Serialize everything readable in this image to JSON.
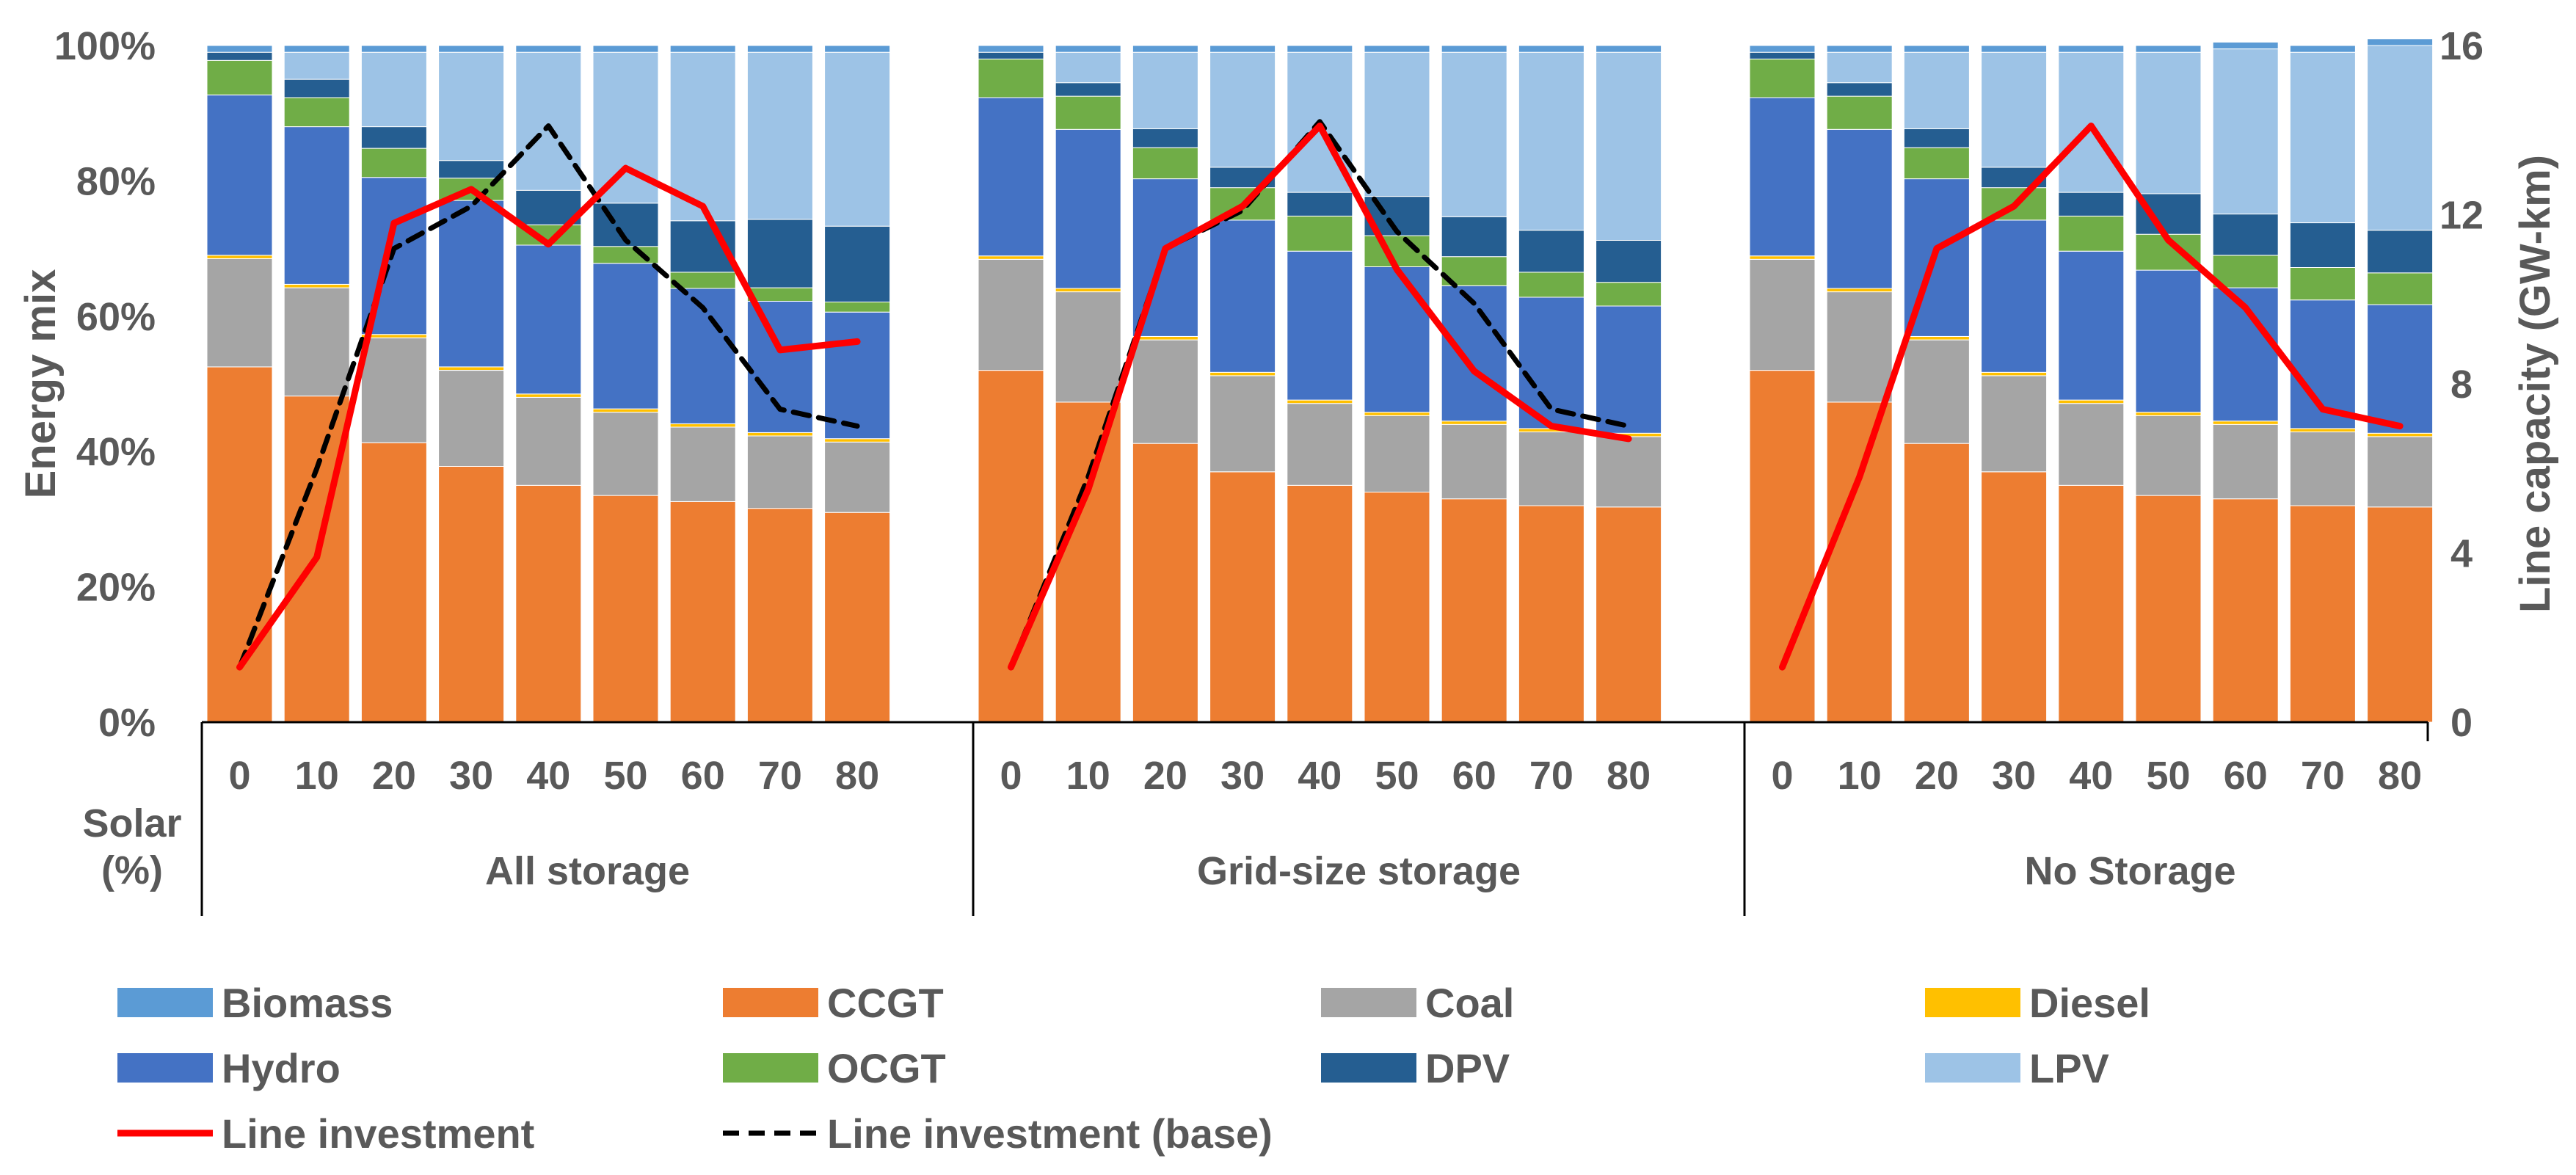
{
  "chart_data": {
    "type": "bar",
    "stacked": true,
    "percent_stacked": true,
    "y_left": {
      "label": "Energy mix",
      "range": [
        0,
        100
      ],
      "ticks": [
        "0%",
        "20%",
        "40%",
        "60%",
        "80%",
        "100%"
      ]
    },
    "y_right": {
      "label": "Line capacity (GW-km)",
      "range": [
        0,
        16
      ],
      "ticks": [
        "0",
        "4",
        "8",
        "12",
        "16"
      ]
    },
    "x_axis": {
      "label_lines": [
        "Solar",
        "(%)"
      ],
      "categories": [
        "0",
        "10",
        "20",
        "30",
        "40",
        "50",
        "60",
        "70",
        "80"
      ]
    },
    "stack_order": [
      "CCGT",
      "Coal",
      "Diesel",
      "Hydro",
      "OCGT",
      "DPV",
      "LPV",
      "Biomass"
    ],
    "colors": {
      "Biomass": "#5B9BD5",
      "CCGT": "#ED7D31",
      "Coal": "#A5A5A5",
      "Diesel": "#FFC000",
      "Hydro": "#4472C4",
      "OCGT": "#70AD47",
      "DPV": "#255E91",
      "LPV": "#9DC3E6",
      "Line investment": "#FF0000",
      "Line investment (base)": "#000000"
    },
    "groups": [
      {
        "name": "All storage",
        "series": {
          "CCGT": [
            52.5,
            48.2,
            41.3,
            37.8,
            35.0,
            33.5,
            32.6,
            31.6,
            31.0
          ],
          "Coal": [
            16.0,
            16.0,
            15.5,
            14.2,
            13.0,
            12.3,
            11.0,
            10.7,
            10.4
          ],
          "Diesel": [
            0.5,
            0.5,
            0.5,
            0.5,
            0.5,
            0.5,
            0.5,
            0.5,
            0.5
          ],
          "Hydro": [
            23.7,
            23.3,
            23.2,
            24.6,
            22.0,
            21.5,
            20.0,
            19.4,
            18.7
          ],
          "OCGT": [
            5.1,
            4.3,
            4.3,
            3.3,
            3.0,
            2.5,
            2.4,
            2.0,
            1.5
          ],
          "DPV": [
            1.2,
            2.7,
            3.2,
            2.6,
            5.1,
            6.4,
            7.6,
            10.1,
            11.2
          ],
          "LPV": [
            0.0,
            4.0,
            11.0,
            16.0,
            20.4,
            22.3,
            24.9,
            24.7,
            25.7
          ],
          "Biomass": [
            1.0,
            1.0,
            1.0,
            1.0,
            1.0,
            1.0,
            1.0,
            1.0,
            1.0
          ]
        },
        "lines": {
          "Line investment": [
            1.3,
            3.9,
            11.8,
            12.6,
            11.3,
            13.1,
            12.2,
            8.8,
            9.0
          ],
          "Line investment (base)": [
            1.3,
            6.0,
            11.2,
            12.2,
            14.1,
            11.4,
            9.8,
            7.4,
            7.0
          ]
        }
      },
      {
        "name": "Grid-size storage",
        "series": {
          "CCGT": [
            52.0,
            47.3,
            41.2,
            37.0,
            35.0,
            34.0,
            33.0,
            32.0,
            31.8
          ],
          "Coal": [
            16.4,
            16.3,
            15.3,
            14.2,
            12.1,
            11.3,
            11.0,
            10.9,
            10.4
          ],
          "Diesel": [
            0.5,
            0.5,
            0.5,
            0.5,
            0.5,
            0.5,
            0.5,
            0.5,
            0.5
          ],
          "Hydro": [
            23.4,
            23.5,
            23.3,
            22.5,
            22.0,
            21.5,
            20.0,
            19.4,
            18.8
          ],
          "OCGT": [
            5.7,
            4.9,
            4.6,
            4.8,
            5.2,
            4.6,
            4.3,
            3.7,
            3.5
          ],
          "DPV": [
            1.0,
            2.0,
            2.8,
            3.0,
            3.5,
            5.8,
            5.9,
            6.2,
            6.2
          ],
          "LPV": [
            0.0,
            4.5,
            11.3,
            17.0,
            20.7,
            21.3,
            24.3,
            26.3,
            27.8
          ],
          "Biomass": [
            1.0,
            1.0,
            1.0,
            1.0,
            1.0,
            1.0,
            1.0,
            1.0,
            1.0
          ]
        },
        "lines": {
          "Line investment": [
            1.3,
            5.5,
            11.2,
            12.2,
            14.1,
            10.7,
            8.3,
            7.0,
            6.7
          ],
          "Line investment (base)": [
            1.3,
            5.8,
            11.2,
            12.1,
            14.2,
            11.6,
            9.9,
            7.4,
            7.0
          ]
        }
      },
      {
        "name": "No Storage",
        "series": {
          "CCGT": [
            52.0,
            47.3,
            41.2,
            37.0,
            35.0,
            33.5,
            33.0,
            32.0,
            31.8
          ],
          "Coal": [
            16.4,
            16.3,
            15.3,
            14.2,
            12.1,
            11.8,
            11.0,
            10.9,
            10.4
          ],
          "Diesel": [
            0.5,
            0.5,
            0.5,
            0.5,
            0.5,
            0.5,
            0.5,
            0.5,
            0.5
          ],
          "Hydro": [
            23.4,
            23.5,
            23.3,
            22.5,
            22.0,
            21.0,
            19.7,
            19.0,
            19.0
          ],
          "OCGT": [
            5.7,
            4.9,
            4.6,
            4.8,
            5.2,
            5.3,
            4.8,
            4.8,
            4.7
          ],
          "DPV": [
            1.0,
            2.0,
            2.8,
            3.0,
            3.5,
            6.0,
            6.1,
            6.6,
            6.3
          ],
          "LPV": [
            0.0,
            4.5,
            11.3,
            17.0,
            20.7,
            20.9,
            24.4,
            25.2,
            27.3
          ],
          "Biomass": [
            1.0,
            1.0,
            1.0,
            1.0,
            1.0,
            1.0,
            1.0,
            1.0,
            1.0
          ]
        },
        "lines": {
          "Line investment": [
            1.3,
            5.8,
            11.2,
            12.2,
            14.1,
            11.4,
            9.8,
            7.4,
            7.0
          ]
        }
      }
    ],
    "legend": {
      "placement": "bottom",
      "items": [
        {
          "label": "Biomass",
          "kind": "bar"
        },
        {
          "label": "CCGT",
          "kind": "bar"
        },
        {
          "label": "Coal",
          "kind": "bar"
        },
        {
          "label": "Diesel",
          "kind": "bar"
        },
        {
          "label": "Hydro",
          "kind": "bar"
        },
        {
          "label": "OCGT",
          "kind": "bar"
        },
        {
          "label": "DPV",
          "kind": "bar"
        },
        {
          "label": "LPV",
          "kind": "bar"
        },
        {
          "label": "Line investment",
          "kind": "line-solid"
        },
        {
          "label": "Line investment (base)",
          "kind": "line-dashed"
        }
      ]
    },
    "grid": false
  }
}
